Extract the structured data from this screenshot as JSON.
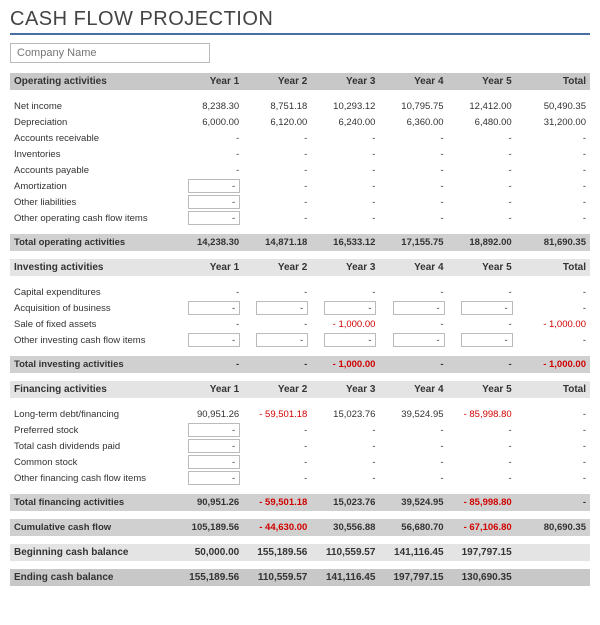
{
  "title": "CASH FLOW PROJECTION",
  "company_placeholder": "Company Name",
  "columns": {
    "y1": "Year 1",
    "y2": "Year 2",
    "y3": "Year 3",
    "y4": "Year 4",
    "y5": "Year 5",
    "total": "Total"
  },
  "sections": {
    "operating": {
      "header": "Operating activities",
      "rows": {
        "net_income": {
          "label": "Net income",
          "y1": "8,238.30",
          "y2": "8,751.18",
          "y3": "10,293.12",
          "y4": "10,795.75",
          "y5": "12,412.00",
          "total": "50,490.35"
        },
        "depreciation": {
          "label": "Depreciation",
          "y1": "6,000.00",
          "y2": "6,120.00",
          "y3": "6,240.00",
          "y4": "6,360.00",
          "y5": "6,480.00",
          "total": "31,200.00"
        },
        "ar": {
          "label": "Accounts receivable",
          "y1": "-",
          "y2": "-",
          "y3": "-",
          "y4": "-",
          "y5": "-",
          "total": "-"
        },
        "inv": {
          "label": "Inventories",
          "y1": "-",
          "y2": "-",
          "y3": "-",
          "y4": "-",
          "y5": "-",
          "total": "-"
        },
        "ap": {
          "label": "Accounts payable",
          "y1": "-",
          "y2": "-",
          "y3": "-",
          "y4": "-",
          "y5": "-",
          "total": "-"
        },
        "amort": {
          "label": "Amortization",
          "y1": "-",
          "y2": "-",
          "y3": "-",
          "y4": "-",
          "y5": "-",
          "total": "-"
        },
        "other_liab": {
          "label": "Other liabilities",
          "y1": "-",
          "y2": "-",
          "y3": "-",
          "y4": "-",
          "y5": "-",
          "total": "-"
        },
        "other": {
          "label": "Other operating cash flow items",
          "y1": "-",
          "y2": "-",
          "y3": "-",
          "y4": "-",
          "y5": "-",
          "total": "-"
        }
      },
      "total": {
        "label": "Total operating activities",
        "y1": "14,238.30",
        "y2": "14,871.18",
        "y3": "16,533.12",
        "y4": "17,155.75",
        "y5": "18,892.00",
        "total": "81,690.35"
      }
    },
    "investing": {
      "header": "Investing activities",
      "rows": {
        "capex": {
          "label": "Capital expenditures",
          "y1": "-",
          "y2": "-",
          "y3": "-",
          "y4": "-",
          "y5": "-",
          "total": "-"
        },
        "acq": {
          "label": "Acquisition of business",
          "y1": "-",
          "y2": "-",
          "y3": "-",
          "y4": "-",
          "y5": "-",
          "total": "-"
        },
        "sale": {
          "label": "Sale of fixed assets",
          "y1": "-",
          "y2": "-",
          "y3": "1,000.00",
          "y3_neg": true,
          "y4": "-",
          "y5": "-",
          "total": "1,000.00",
          "total_neg": true,
          "total_prefix": "-  "
        },
        "other": {
          "label": "Other investing cash flow items",
          "y1": "-",
          "y2": "-",
          "y3": "-",
          "y4": "-",
          "y5": "-",
          "total": "-"
        }
      },
      "total": {
        "label": "Total investing activities",
        "y1": "-",
        "y2": "-",
        "y3": "1,000.00",
        "y3_neg": true,
        "y3_prefix": "-   ",
        "y4": "-",
        "y5": "-",
        "total": "1,000.00",
        "total_neg": true,
        "total_prefix": "-  "
      }
    },
    "financing": {
      "header": "Financing activities",
      "rows": {
        "ltd": {
          "label": "Long-term debt/financing",
          "y1": "90,951.26",
          "y2": "59,501.18",
          "y2_neg": true,
          "y2_prefix": "-  ",
          "y3": "15,023.76",
          "y4": "39,524.95",
          "y5": "85,998.80",
          "y5_neg": true,
          "y5_prefix": "-  ",
          "total": "-"
        },
        "pref": {
          "label": "Preferred stock",
          "y1": "-",
          "y2": "-",
          "y3": "-",
          "y4": "-",
          "y5": "-",
          "total": "-"
        },
        "div": {
          "label": "Total cash dividends paid",
          "y1": "-",
          "y2": "-",
          "y3": "-",
          "y4": "-",
          "y5": "-",
          "total": "-"
        },
        "common": {
          "label": "Common stock",
          "y1": "-",
          "y2": "-",
          "y3": "-",
          "y4": "-",
          "y5": "-",
          "total": "-"
        },
        "other": {
          "label": "Other financing cash flow items",
          "y1": "-",
          "y2": "-",
          "y3": "-",
          "y4": "-",
          "y5": "-",
          "total": "-"
        }
      },
      "total": {
        "label": "Total financing activities",
        "y1": "90,951.26",
        "y2": "59,501.18",
        "y2_neg": true,
        "y2_prefix": "-  ",
        "y3": "15,023.76",
        "y4": "39,524.95",
        "y5": "85,998.80",
        "y5_neg": true,
        "y5_prefix": "-  ",
        "total": "-"
      }
    },
    "cumulative": {
      "label": "Cumulative cash flow",
      "y1": "105,189.56",
      "y2": "44,630.00",
      "y2_neg": true,
      "y2_prefix": "-  ",
      "y3": "30,556.88",
      "y4": "56,680.70",
      "y5": "67,106.80",
      "y5_neg": true,
      "y5_prefix": "-  ",
      "total": "80,690.35"
    },
    "beginning": {
      "label": "Beginning cash balance",
      "y1": "50,000.00",
      "y2": "155,189.56",
      "y3": "110,559.57",
      "y4": "141,116.45",
      "y5": "197,797.15",
      "total": ""
    },
    "ending": {
      "label": "Ending cash balance",
      "y1": "155,189.56",
      "y2": "110,559.57",
      "y3": "141,116.45",
      "y4": "197,797.15",
      "y5": "130,690.35",
      "total": ""
    }
  },
  "layout": {
    "boxed": {
      "operating": {
        "amort": [
          "y1"
        ],
        "other_liab": [
          "y1"
        ],
        "other": [
          "y1"
        ]
      },
      "investing": {
        "acq": [
          "y1",
          "y2",
          "y3",
          "y4",
          "y5"
        ],
        "other": [
          "y1",
          "y2",
          "y3",
          "y4",
          "y5"
        ]
      },
      "financing": {
        "pref": [
          "y1"
        ],
        "div": [
          "y1"
        ],
        "common": [
          "y1"
        ],
        "other": [
          "y1"
        ]
      }
    }
  }
}
